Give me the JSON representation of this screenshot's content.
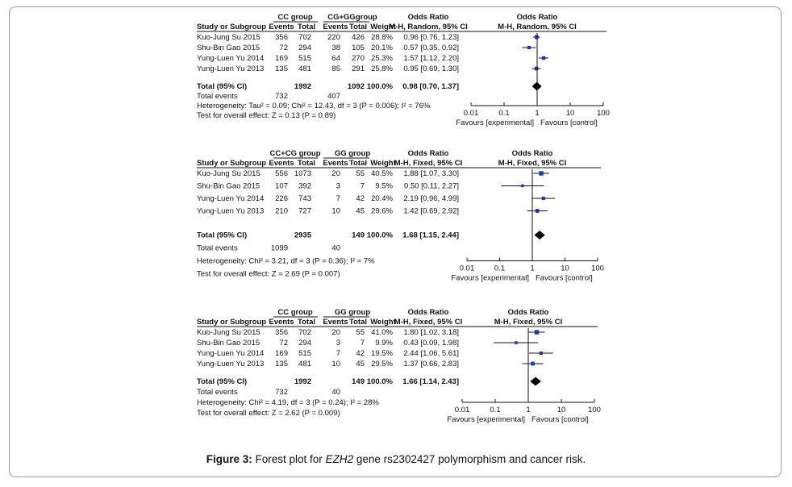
{
  "figure": {
    "caption_prefix": "Figure 3:",
    "caption_pre": " Forest plot for ",
    "caption_gene": "EZH2",
    "caption_post": " gene rs2302427 polymorphism and cancer risk."
  },
  "chart_data": [
    {
      "type": "forest",
      "group1": "CC group",
      "group2": "CG+GGgroup",
      "col_study": "Study or Subgroup",
      "col_events": "Events",
      "col_total": "Total",
      "col_weight": "Weight",
      "or_header": "Odds Ratio",
      "or_method": "M-H, Random, 95% CI",
      "studies": [
        {
          "name": "Kuo-Jung Su 2015",
          "e1": "356",
          "t1": "702",
          "e2": "220",
          "t2": "426",
          "weight": "28.8%",
          "ci_text": "0.96 [0.76, 1.23]",
          "or": 0.96,
          "lo": 0.76,
          "hi": 1.23
        },
        {
          "name": "Shu-Bin Gao 2015",
          "e1": "72",
          "t1": "294",
          "e2": "38",
          "t2": "105",
          "weight": "20.1%",
          "ci_text": "0.57 [0.35, 0.92]",
          "or": 0.57,
          "lo": 0.35,
          "hi": 0.92
        },
        {
          "name": "Yung-Luen Yu 2014",
          "e1": "169",
          "t1": "515",
          "e2": "64",
          "t2": "270",
          "weight": "25.3%",
          "ci_text": "1.57 [1.12, 2.20]",
          "or": 1.57,
          "lo": 1.12,
          "hi": 2.2
        },
        {
          "name": "Yung-Luen Yu 2013",
          "e1": "135",
          "t1": "481",
          "e2": "85",
          "t2": "291",
          "weight": "25.8%",
          "ci_text": "0.95 [0.69, 1.30]",
          "or": 0.95,
          "lo": 0.69,
          "hi": 1.3
        }
      ],
      "total": {
        "label": "Total (95% CI)",
        "t1": "1992",
        "t2": "1092",
        "weight": "100.0%",
        "ci_text": "0.98 [0.70, 1.37]",
        "or": 0.98,
        "lo": 0.7,
        "hi": 1.37
      },
      "events": {
        "label": "Total events",
        "e1": "732",
        "e2": "407"
      },
      "heterogeneity": "Heterogeneity: Tau² = 0.09; Chi² = 12.43, df = 3 (P = 0.006); I² = 76%",
      "overall": "Test for overall effect: Z = 0.13 (P = 0.89)",
      "axis_ticks": [
        {
          "v": 0.01,
          "label": "0.01"
        },
        {
          "v": 0.1,
          "label": "0.1"
        },
        {
          "v": 1,
          "label": "1"
        },
        {
          "v": 10,
          "label": "10"
        },
        {
          "v": 100,
          "label": "100"
        }
      ],
      "favours_left": "Favours [experimental]",
      "favours_right": "Favours [control]",
      "xscale": "log",
      "xlim": [
        0.01,
        100
      ]
    },
    {
      "type": "forest",
      "group1": "CC+CG group",
      "group2": "GG group",
      "col_study": "Study or Subgroup",
      "col_events": "Events",
      "col_total": "Total",
      "col_weight": "Weight",
      "or_header": "Odds Ratio",
      "or_method": "M-H, Fixed, 95% CI",
      "studies": [
        {
          "name": "Kuo-Jung Su 2015",
          "e1": "556",
          "t1": "1073",
          "e2": "20",
          "t2": "55",
          "weight": "40.5%",
          "ci_text": "1.88 [1.07, 3.30]",
          "or": 1.88,
          "lo": 1.07,
          "hi": 3.3
        },
        {
          "name": "Shu-Bin Gao 2015",
          "e1": "107",
          "t1": "392",
          "e2": "3",
          "t2": "7",
          "weight": "9.5%",
          "ci_text": "0.50 [0.11, 2.27]",
          "or": 0.5,
          "lo": 0.11,
          "hi": 2.27
        },
        {
          "name": "Yung-Luen Yu 2014",
          "e1": "226",
          "t1": "743",
          "e2": "7",
          "t2": "42",
          "weight": "20.4%",
          "ci_text": "2.19 [0.96, 4.99]",
          "or": 2.19,
          "lo": 0.96,
          "hi": 4.99
        },
        {
          "name": "Yung-Luen Yu 2013",
          "e1": "210",
          "t1": "727",
          "e2": "10",
          "t2": "45",
          "weight": "29.6%",
          "ci_text": "1.42 [0.69, 2.92]",
          "or": 1.42,
          "lo": 0.69,
          "hi": 2.92
        }
      ],
      "total": {
        "label": "Total (95% CI)",
        "t1": "2935",
        "t2": "149",
        "weight": "100.0%",
        "ci_text": "1.68 [1.15, 2.44]",
        "or": 1.68,
        "lo": 1.15,
        "hi": 2.44
      },
      "events": {
        "label": "Total events",
        "e1": "1099",
        "e2": "40"
      },
      "heterogeneity": "Heterogeneity: Chi² = 3.21, df = 3 (P = 0.36); I² = 7%",
      "overall": "Test for overall effect: Z = 2.69 (P = 0.007)",
      "axis_ticks": [
        {
          "v": 0.01,
          "label": "0.01"
        },
        {
          "v": 0.1,
          "label": "0.1"
        },
        {
          "v": 1,
          "label": "1"
        },
        {
          "v": 10,
          "label": "10"
        },
        {
          "v": 100,
          "label": "100"
        }
      ],
      "favours_left": "Favours [experimental]",
      "favours_right": "Favours [control]",
      "xscale": "log",
      "xlim": [
        0.01,
        100
      ]
    },
    {
      "type": "forest",
      "group1": "CC group",
      "group2": "GG group",
      "col_study": "Study or Subgroup",
      "col_events": "Events",
      "col_total": "Total",
      "col_weight": "Weight",
      "or_header": "Odds Ratio",
      "or_method": "M-H, Fixed, 95% CI",
      "studies": [
        {
          "name": "Kuo-Jung Su 2015",
          "e1": "356",
          "t1": "702",
          "e2": "20",
          "t2": "55",
          "weight": "41.0%",
          "ci_text": "1.80 [1.02, 3.18]",
          "or": 1.8,
          "lo": 1.02,
          "hi": 3.18
        },
        {
          "name": "Shu-Bin Gao 2015",
          "e1": "72",
          "t1": "294",
          "e2": "3",
          "t2": "7",
          "weight": "9.9%",
          "ci_text": "0.43 [0.09, 1.98]",
          "or": 0.43,
          "lo": 0.09,
          "hi": 1.98
        },
        {
          "name": "Yung-Luen Yu 2014",
          "e1": "169",
          "t1": "515",
          "e2": "7",
          "t2": "42",
          "weight": "19.5%",
          "ci_text": "2.44 [1.06, 5.61]",
          "or": 2.44,
          "lo": 1.06,
          "hi": 5.61
        },
        {
          "name": "Yung-Luen Yu 2013",
          "e1": "135",
          "t1": "481",
          "e2": "10",
          "t2": "45",
          "weight": "29.5%",
          "ci_text": "1.37 [0.66, 2.83]",
          "or": 1.37,
          "lo": 0.66,
          "hi": 2.83
        }
      ],
      "total": {
        "label": "Total (95% CI)",
        "t1": "1992",
        "t2": "149",
        "weight": "100.0%",
        "ci_text": "1.66 [1.14, 2.43]",
        "or": 1.66,
        "lo": 1.14,
        "hi": 2.43
      },
      "events": {
        "label": "Total events",
        "e1": "732",
        "e2": "40"
      },
      "heterogeneity": "Heterogeneity: Chi² = 4.19, df = 3 (P = 0.24); I² = 28%",
      "overall": "Test for overall effect: Z = 2.62 (P = 0.009)",
      "axis_ticks": [
        {
          "v": 0.01,
          "label": "0.01"
        },
        {
          "v": 0.1,
          "label": "0.1"
        },
        {
          "v": 1,
          "label": "1"
        },
        {
          "v": 10,
          "label": "10"
        },
        {
          "v": 100,
          "label": "100"
        }
      ],
      "favours_left": "Favours [experimental]",
      "favours_right": "Favours [control]",
      "xscale": "log",
      "xlim": [
        0.01,
        100
      ]
    }
  ]
}
